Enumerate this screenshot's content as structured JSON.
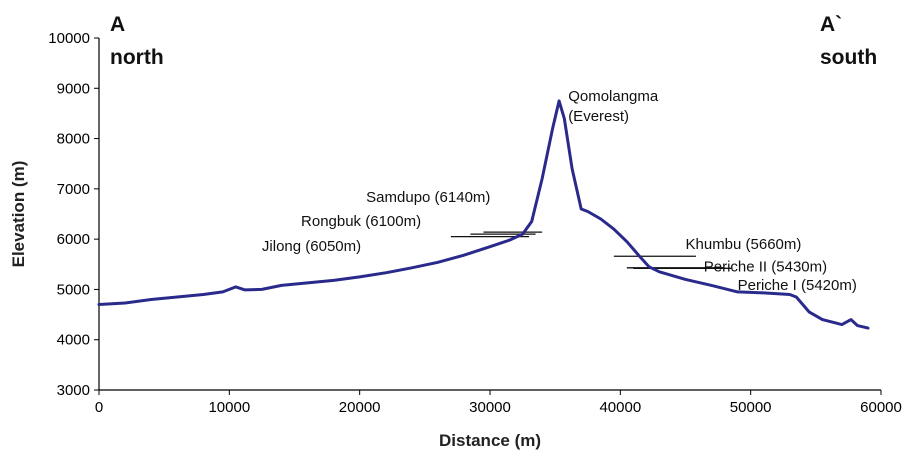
{
  "chart_data": {
    "type": "line",
    "title": "",
    "xlabel": "Distance (m)",
    "ylabel": "Elevation (m)",
    "xlim": [
      0,
      60000
    ],
    "ylim": [
      3000,
      10000
    ],
    "xticks": [
      0,
      10000,
      20000,
      30000,
      40000,
      50000,
      60000
    ],
    "yticks": [
      3000,
      4000,
      5000,
      6000,
      7000,
      8000,
      9000,
      10000
    ],
    "grid": false,
    "legend": "none",
    "line_color": "#2a2a8c",
    "corner_labels": {
      "left": {
        "letter": "A",
        "direction": "north"
      },
      "right": {
        "letter": "A`",
        "direction": "south"
      }
    },
    "series": [
      {
        "values": [
          [
            0,
            4700
          ],
          [
            2000,
            4730
          ],
          [
            4000,
            4800
          ],
          [
            6000,
            4850
          ],
          [
            8000,
            4900
          ],
          [
            9500,
            4950
          ],
          [
            10500,
            5050
          ],
          [
            11200,
            4990
          ],
          [
            12500,
            5000
          ],
          [
            14000,
            5080
          ],
          [
            16000,
            5130
          ],
          [
            18000,
            5180
          ],
          [
            20000,
            5250
          ],
          [
            22000,
            5330
          ],
          [
            24000,
            5430
          ],
          [
            26000,
            5540
          ],
          [
            28000,
            5680
          ],
          [
            30000,
            5850
          ],
          [
            31500,
            5980
          ],
          [
            32500,
            6100
          ],
          [
            33200,
            6350
          ],
          [
            34000,
            7200
          ],
          [
            34800,
            8200
          ],
          [
            35300,
            8750
          ],
          [
            35700,
            8400
          ],
          [
            36300,
            7400
          ],
          [
            37000,
            6600
          ],
          [
            37500,
            6550
          ],
          [
            38500,
            6400
          ],
          [
            39500,
            6200
          ],
          [
            40500,
            5950
          ],
          [
            41500,
            5650
          ],
          [
            42200,
            5450
          ],
          [
            43000,
            5350
          ],
          [
            45000,
            5200
          ],
          [
            47000,
            5080
          ],
          [
            49000,
            4950
          ],
          [
            51000,
            4930
          ],
          [
            53000,
            4900
          ],
          [
            53500,
            4850
          ],
          [
            54500,
            4550
          ],
          [
            55500,
            4400
          ],
          [
            57000,
            4300
          ],
          [
            57700,
            4400
          ],
          [
            58200,
            4280
          ],
          [
            59000,
            4230
          ]
        ]
      }
    ],
    "annotations": [
      {
        "text": "Qomolangma",
        "x": 36000,
        "y": 8750
      },
      {
        "text": "(Everest)",
        "x": 36000,
        "y": 8350
      },
      {
        "text": "Samdupo (6140m)",
        "x": 20500,
        "y": 6740,
        "line": [
          [
            29500,
            6140
          ],
          [
            34000,
            6140
          ]
        ]
      },
      {
        "text": "Rongbuk (6100m)",
        "x": 15500,
        "y": 6260,
        "line": [
          [
            28500,
            6100
          ],
          [
            33500,
            6100
          ]
        ]
      },
      {
        "text": "Jilong (6050m)",
        "x": 12500,
        "y": 5760,
        "line": [
          [
            27000,
            6050
          ],
          [
            33000,
            6050
          ]
        ]
      },
      {
        "text": "Khumbu (5660m)",
        "x": 45000,
        "y": 5800,
        "line": [
          [
            39500,
            5660
          ],
          [
            45800,
            5660
          ]
        ]
      },
      {
        "text": "Periche II (5430m)",
        "x": 46400,
        "y": 5360,
        "line": [
          [
            40500,
            5430
          ],
          [
            48000,
            5430
          ]
        ]
      },
      {
        "text": "Periche I (5420m)",
        "x": 49000,
        "y": 4990,
        "line": [
          [
            41000,
            5420
          ],
          [
            48500,
            5420
          ]
        ]
      }
    ]
  }
}
